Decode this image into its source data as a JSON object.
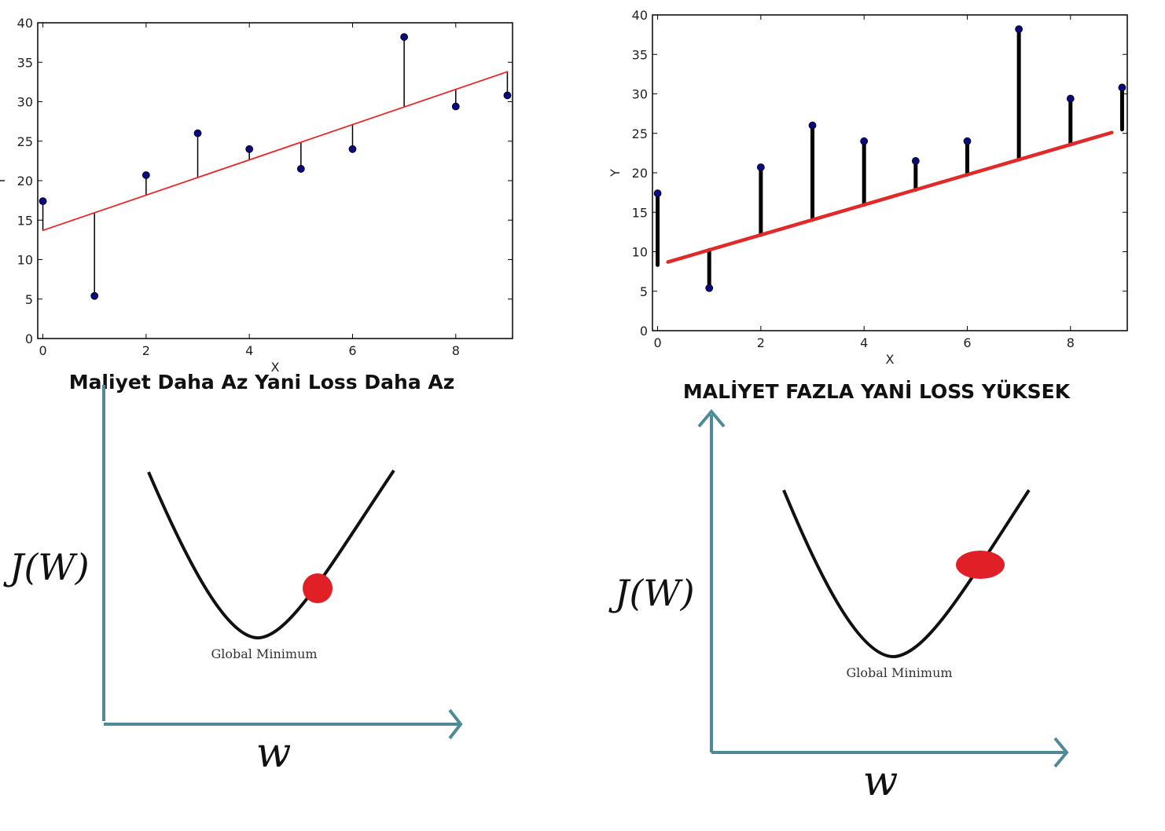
{
  "chart_data": [
    {
      "type": "scatter",
      "xlabel": "X",
      "ylabel": "Y",
      "xlim": [
        -0.1,
        9.1
      ],
      "ylim": [
        0,
        40
      ],
      "xticks": [
        "0",
        "2",
        "4",
        "6",
        "8"
      ],
      "yticks": [
        "0",
        "5",
        "10",
        "15",
        "20",
        "25",
        "30",
        "35",
        "40"
      ],
      "x": [
        0,
        1,
        2,
        3,
        4,
        5,
        6,
        7,
        8,
        9
      ],
      "y": [
        17.4,
        5.4,
        20.7,
        26,
        24,
        21.5,
        24,
        38.2,
        29.4,
        30.8
      ],
      "fit_line": {
        "x": [
          0,
          9
        ],
        "y": [
          13.7,
          33.8
        ]
      },
      "grid": false,
      "point_color": "#0a0a80",
      "line_color": "#e8292b"
    },
    {
      "type": "scatter",
      "xlabel": "X",
      "ylabel": "Y",
      "xlim": [
        -0.1,
        9.1
      ],
      "ylim": [
        0,
        40
      ],
      "xticks": [
        "0",
        "2",
        "4",
        "6",
        "8"
      ],
      "yticks": [
        "0",
        "5",
        "10",
        "15",
        "20",
        "25",
        "30",
        "35",
        "40"
      ],
      "x": [
        0,
        1,
        2,
        3,
        4,
        5,
        6,
        7,
        8,
        9
      ],
      "y": [
        17.4,
        5.4,
        20.7,
        26,
        24,
        21.5,
        24,
        38.2,
        29.4,
        30.8
      ],
      "fit_line": {
        "x": [
          0.2,
          8.8
        ],
        "y": [
          8.7,
          25.1
        ]
      },
      "grid": false,
      "point_color": "#0a0a80",
      "line_color": "#e02a2a"
    }
  ],
  "captions": {
    "left": "Maliyet Daha Az Yani Loss Daha Az",
    "right": "MALİYET FAZLA YANİ LOSS YÜKSEK"
  },
  "cost_curves": {
    "left": {
      "y_axis_label": "J(W)",
      "x_axis_label": "w",
      "minimum_label": "Global Minimum"
    },
    "right": {
      "y_axis_label": "J(W)",
      "x_axis_label": "w",
      "minimum_label": "Global Minimum"
    }
  },
  "colors": {
    "axis_teal": "#4f8a96",
    "ball_red": "#e01f26"
  }
}
